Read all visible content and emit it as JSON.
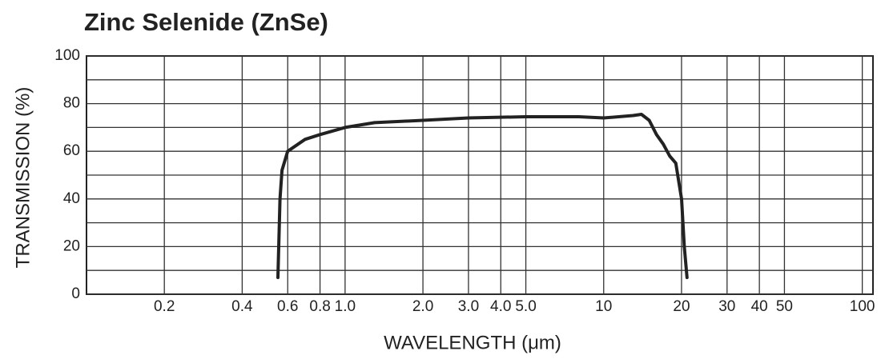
{
  "chart_data": {
    "type": "line",
    "title": "Zinc Selenide (ZnSe)",
    "x_label": "WAVELENGTH (μm)",
    "y_label": "TRANSMISSION (%)",
    "x": [
      0.55,
      0.56,
      0.57,
      0.6,
      0.7,
      0.8,
      1.0,
      1.3,
      2.0,
      3.0,
      5.0,
      8,
      10,
      13,
      14,
      15,
      16,
      17,
      18,
      19,
      20,
      20.5,
      21
    ],
    "values": [
      7,
      40,
      52,
      60,
      65,
      67,
      70,
      72,
      73,
      74,
      74.5,
      74.5,
      74,
      75,
      75.5,
      73,
      67,
      63,
      58,
      55,
      40,
      20,
      7
    ],
    "color": "#222222",
    "xscale": "log",
    "grid": true,
    "xlim": [
      0.1,
      110
    ],
    "ylim": [
      0,
      100
    ],
    "xticks": [
      0.2,
      0.4,
      0.6,
      0.8,
      {
        "value": 1,
        "label": "1.0"
      },
      {
        "value": 2,
        "label": "2.0"
      },
      {
        "value": 3,
        "label": "3.0"
      },
      {
        "value": 4,
        "label": "4.0"
      },
      {
        "value": 5,
        "label": "5.0"
      },
      10,
      20,
      30,
      40,
      50,
      100
    ],
    "yticks": [
      0,
      20,
      40,
      60,
      80,
      100
    ],
    "yminorticks": [
      10,
      30,
      50,
      70,
      90
    ]
  }
}
